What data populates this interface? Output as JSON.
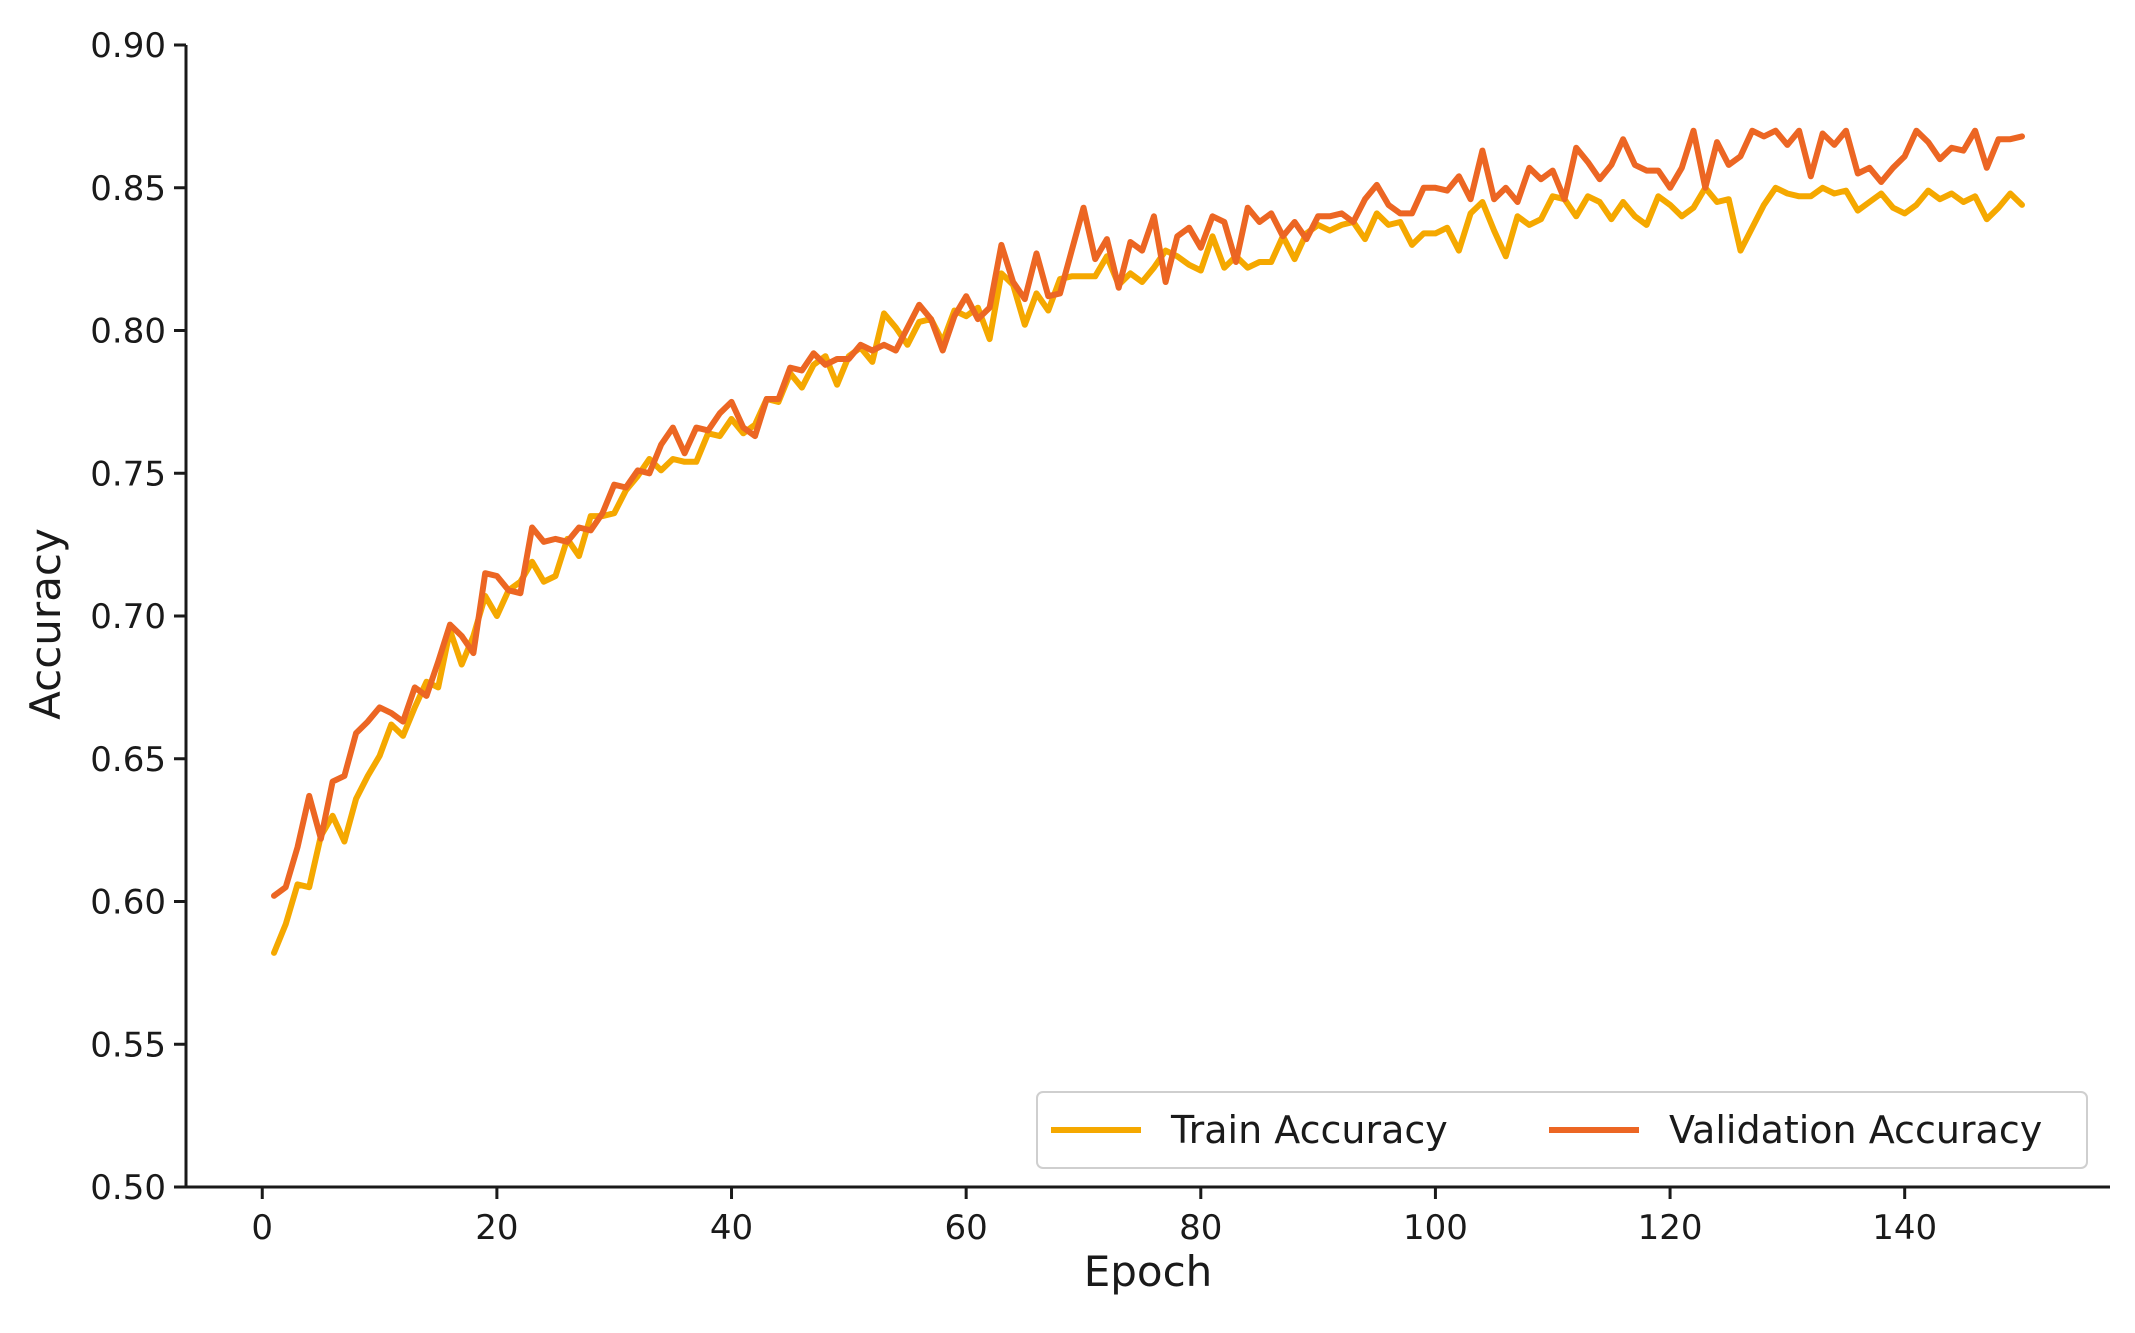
{
  "chart_data": {
    "type": "line",
    "title": "",
    "xlabel": "Epoch",
    "ylabel": "Accuracy",
    "xlim": [
      -6.5,
      157.5
    ],
    "ylim": [
      0.5,
      0.9
    ],
    "xticks": [
      0,
      20,
      40,
      60,
      80,
      100,
      120,
      140
    ],
    "xtick_labels": [
      "0",
      "20",
      "40",
      "60",
      "80",
      "100",
      "120",
      "140"
    ],
    "yticks": [
      0.5,
      0.55,
      0.6,
      0.65,
      0.7,
      0.75,
      0.8,
      0.85,
      0.9
    ],
    "ytick_labels": [
      "0.50",
      "0.55",
      "0.60",
      "0.65",
      "0.70",
      "0.75",
      "0.80",
      "0.85",
      "0.90"
    ],
    "grid": false,
    "legend_position": "lower-right",
    "legend_columns": 2,
    "x_start": 1,
    "x_end": 150,
    "series": [
      {
        "name": "Train Accuracy",
        "color": "#f5a800",
        "values": [
          0.582,
          0.592,
          0.606,
          0.605,
          0.623,
          0.63,
          0.621,
          0.636,
          0.644,
          0.651,
          0.662,
          0.658,
          0.668,
          0.677,
          0.675,
          0.695,
          0.683,
          0.693,
          0.707,
          0.7,
          0.709,
          0.712,
          0.719,
          0.712,
          0.714,
          0.727,
          0.721,
          0.735,
          0.735,
          0.736,
          0.744,
          0.749,
          0.755,
          0.751,
          0.755,
          0.754,
          0.754,
          0.764,
          0.763,
          0.769,
          0.764,
          0.767,
          0.776,
          0.775,
          0.785,
          0.78,
          0.788,
          0.791,
          0.781,
          0.791,
          0.794,
          0.789,
          0.806,
          0.801,
          0.795,
          0.803,
          0.804,
          0.796,
          0.807,
          0.805,
          0.808,
          0.797,
          0.82,
          0.816,
          0.802,
          0.813,
          0.807,
          0.818,
          0.819,
          0.819,
          0.819,
          0.826,
          0.816,
          0.82,
          0.817,
          0.822,
          0.828,
          0.826,
          0.823,
          0.821,
          0.833,
          0.822,
          0.826,
          0.822,
          0.824,
          0.824,
          0.833,
          0.825,
          0.834,
          0.837,
          0.835,
          0.837,
          0.838,
          0.832,
          0.841,
          0.837,
          0.838,
          0.83,
          0.834,
          0.834,
          0.836,
          0.828,
          0.841,
          0.845,
          0.835,
          0.826,
          0.84,
          0.837,
          0.839,
          0.847,
          0.846,
          0.84,
          0.847,
          0.845,
          0.839,
          0.845,
          0.84,
          0.837,
          0.847,
          0.844,
          0.84,
          0.843,
          0.85,
          0.845,
          0.846,
          0.828,
          0.836,
          0.844,
          0.85,
          0.848,
          0.847,
          0.847,
          0.85,
          0.848,
          0.849,
          0.842,
          0.845,
          0.848,
          0.843,
          0.841,
          0.844,
          0.849,
          0.846,
          0.848,
          0.845,
          0.847,
          0.839,
          0.843,
          0.848,
          0.844
        ]
      },
      {
        "name": "Validation Accuracy",
        "color": "#ec6623",
        "values": [
          0.602,
          0.605,
          0.619,
          0.637,
          0.622,
          0.642,
          0.644,
          0.659,
          0.663,
          0.668,
          0.666,
          0.663,
          0.675,
          0.672,
          0.684,
          0.697,
          0.693,
          0.687,
          0.715,
          0.714,
          0.709,
          0.708,
          0.731,
          0.726,
          0.727,
          0.726,
          0.731,
          0.73,
          0.736,
          0.746,
          0.745,
          0.751,
          0.75,
          0.76,
          0.766,
          0.757,
          0.766,
          0.765,
          0.771,
          0.775,
          0.766,
          0.763,
          0.776,
          0.776,
          0.787,
          0.786,
          0.792,
          0.788,
          0.79,
          0.79,
          0.795,
          0.793,
          0.795,
          0.793,
          0.801,
          0.809,
          0.804,
          0.793,
          0.805,
          0.812,
          0.804,
          0.808,
          0.83,
          0.817,
          0.811,
          0.827,
          0.812,
          0.813,
          0.828,
          0.843,
          0.825,
          0.832,
          0.815,
          0.831,
          0.828,
          0.84,
          0.817,
          0.833,
          0.836,
          0.829,
          0.84,
          0.838,
          0.824,
          0.843,
          0.838,
          0.841,
          0.833,
          0.838,
          0.832,
          0.84,
          0.84,
          0.841,
          0.838,
          0.846,
          0.851,
          0.844,
          0.841,
          0.841,
          0.85,
          0.85,
          0.849,
          0.854,
          0.846,
          0.863,
          0.846,
          0.85,
          0.845,
          0.857,
          0.853,
          0.856,
          0.846,
          0.864,
          0.859,
          0.853,
          0.858,
          0.867,
          0.858,
          0.856,
          0.856,
          0.85,
          0.857,
          0.87,
          0.85,
          0.866,
          0.858,
          0.861,
          0.87,
          0.868,
          0.87,
          0.865,
          0.87,
          0.854,
          0.869,
          0.865,
          0.87,
          0.855,
          0.857,
          0.852,
          0.857,
          0.861,
          0.87,
          0.866,
          0.86,
          0.864,
          0.863,
          0.87,
          0.857,
          0.867,
          0.867,
          0.868
        ]
      }
    ]
  }
}
